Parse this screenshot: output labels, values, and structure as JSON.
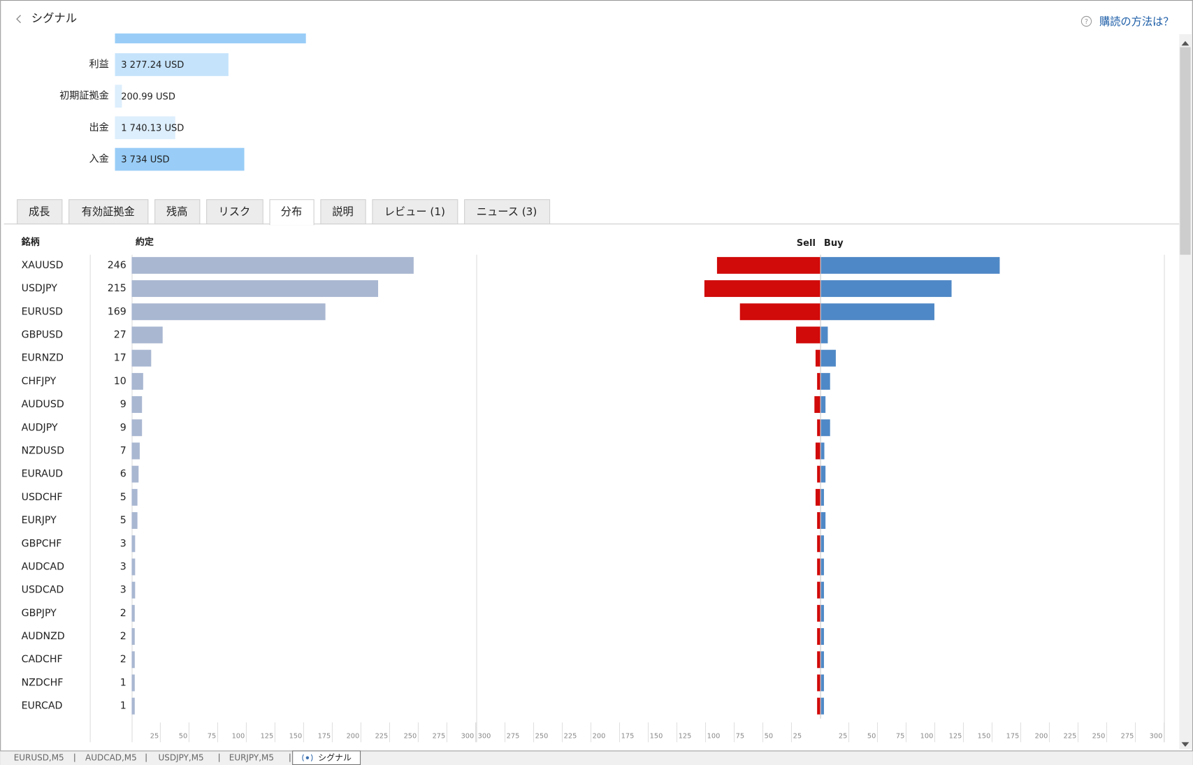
{
  "header": {
    "title": "シグナル",
    "help_link": "購読の方法は？"
  },
  "summary": [
    {
      "label": "利益",
      "value": 3277.24,
      "value_label": "3 277.24 USD",
      "color": "#c5e3fb"
    },
    {
      "label": "初期証拠金",
      "value": 200.99,
      "value_label": "200.99 USD",
      "color": "#ddeefc"
    },
    {
      "label": "出金",
      "value": 1740.13,
      "value_label": "1 740.13 USD",
      "color": "#ddeefc"
    },
    {
      "label": "入金",
      "value": 3734,
      "value_label": "3 734 USD",
      "color": "#99cdf7"
    }
  ],
  "tabs": [
    "成長",
    "有効証拠金",
    "残高",
    "リスク",
    "分布",
    "説明",
    "レビュー (1)",
    "ニュース (3)"
  ],
  "active_tab": 4,
  "distribution": {
    "symbol_header": "銘柄",
    "deals_header": "約定",
    "sell_label": "Sell",
    "buy_label": "Buy",
    "xlim": [
      0,
      300
    ],
    "ticks": [
      25,
      50,
      75,
      100,
      125,
      150,
      175,
      200,
      225,
      250,
      275,
      300
    ],
    "sell_ticks": [
      300,
      275,
      250,
      225,
      200,
      175,
      150,
      125,
      100,
      75,
      50,
      25
    ],
    "buy_ticks": [
      25,
      50,
      75,
      100,
      125,
      150,
      175,
      200,
      225,
      250,
      275,
      300
    ],
    "colors": {
      "deals": "#a9b7d1",
      "sell": "#d10a0a",
      "buy": "#4f88c6"
    },
    "rows": [
      {
        "symbol": "XAUUSD",
        "deals": 246,
        "sell": 90,
        "buy": 156
      },
      {
        "symbol": "USDJPY",
        "deals": 215,
        "sell": 101,
        "buy": 114
      },
      {
        "symbol": "EURUSD",
        "deals": 169,
        "sell": 70,
        "buy": 99
      },
      {
        "symbol": "GBPUSD",
        "deals": 27,
        "sell": 21,
        "buy": 6
      },
      {
        "symbol": "EURNZD",
        "deals": 17,
        "sell": 4,
        "buy": 13
      },
      {
        "symbol": "CHFJPY",
        "deals": 10,
        "sell": 2,
        "buy": 8
      },
      {
        "symbol": "AUDUSD",
        "deals": 9,
        "sell": 5,
        "buy": 4
      },
      {
        "symbol": "AUDJPY",
        "deals": 9,
        "sell": 1,
        "buy": 8
      },
      {
        "symbol": "NZDUSD",
        "deals": 7,
        "sell": 4,
        "buy": 3
      },
      {
        "symbol": "EURAUD",
        "deals": 6,
        "sell": 2,
        "buy": 4
      },
      {
        "symbol": "USDCHF",
        "deals": 5,
        "sell": 4,
        "buy": 1
      },
      {
        "symbol": "EURJPY",
        "deals": 5,
        "sell": 1,
        "buy": 4
      },
      {
        "symbol": "GBPCHF",
        "deals": 3,
        "sell": 1,
        "buy": 2
      },
      {
        "symbol": "AUDCAD",
        "deals": 3,
        "sell": 1,
        "buy": 2
      },
      {
        "symbol": "USDCAD",
        "deals": 3,
        "sell": 1,
        "buy": 2
      },
      {
        "symbol": "GBPJPY",
        "deals": 2,
        "sell": 1,
        "buy": 1
      },
      {
        "symbol": "AUDNZD",
        "deals": 2,
        "sell": 1,
        "buy": 1
      },
      {
        "symbol": "CADCHF",
        "deals": 2,
        "sell": 1,
        "buy": 1
      },
      {
        "symbol": "NZDCHF",
        "deals": 1,
        "sell": 0,
        "buy": 1
      },
      {
        "symbol": "EURCAD",
        "deals": 1,
        "sell": 0,
        "buy": 1
      }
    ]
  },
  "bottom_tabs": [
    "EURUSD,M5",
    "AUDCAD,M5",
    "USDJPY,M5",
    "EURJPY,M5",
    "シグナル"
  ],
  "active_bottom_tab": 4
}
